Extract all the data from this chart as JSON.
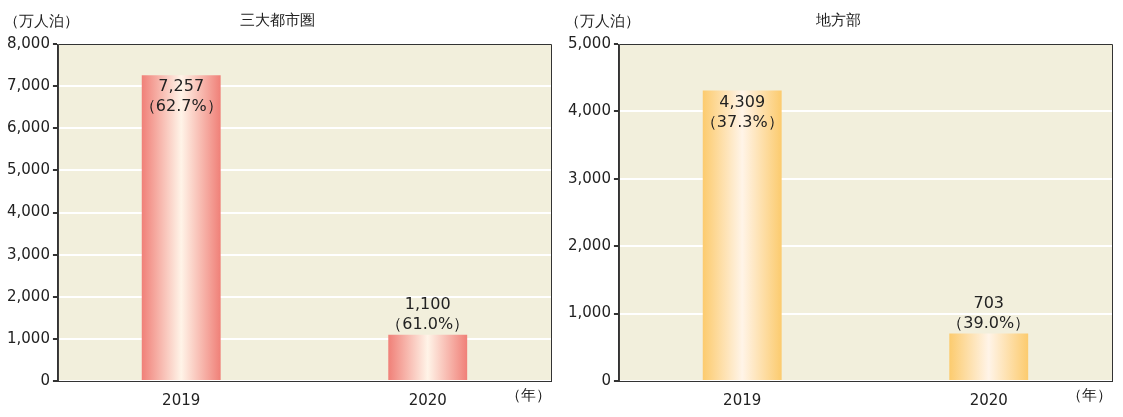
{
  "chart_data": [
    {
      "type": "bar",
      "title": "三大都市圏",
      "ylabel": "（万人泊）",
      "xlabel": "（年）",
      "categories": [
        "2019",
        "2020"
      ],
      "series": [
        {
          "color": "#f08078",
          "values": [
            7257,
            1100
          ],
          "value_labels": [
            "7,257\n（62.7%）",
            "1,100\n（61.0%）"
          ]
        }
      ],
      "ylim": [
        0,
        8000
      ],
      "yticks": [
        0,
        {
          "value": 1000,
          "label": "1,000"
        },
        {
          "value": 2000,
          "label": "2,000"
        },
        {
          "value": 3000,
          "label": "3,000"
        },
        {
          "value": 4000,
          "label": "4,000"
        },
        {
          "value": 5000,
          "label": "5,000"
        },
        {
          "value": 6000,
          "label": "6,000"
        },
        {
          "value": 7000,
          "label": "7,000"
        },
        {
          "value": 8000,
          "label": "8,000"
        }
      ],
      "grid": "y"
    },
    {
      "type": "bar",
      "title": "地方部",
      "ylabel": "（万人泊）",
      "xlabel": "（年）",
      "categories": [
        "2019",
        "2020"
      ],
      "series": [
        {
          "color": "#fccb6e",
          "values": [
            4309,
            703
          ],
          "value_labels": [
            "4,309\n（37.3%）",
            "703\n（39.0%）"
          ]
        }
      ],
      "ylim": [
        0,
        5000
      ],
      "yticks": [
        0,
        {
          "value": 1000,
          "label": "1,000"
        },
        {
          "value": 2000,
          "label": "2,000"
        },
        {
          "value": 3000,
          "label": "3,000"
        },
        {
          "value": 4000,
          "label": "4,000"
        },
        {
          "value": 5000,
          "label": "5,000"
        }
      ],
      "grid": "y"
    }
  ]
}
